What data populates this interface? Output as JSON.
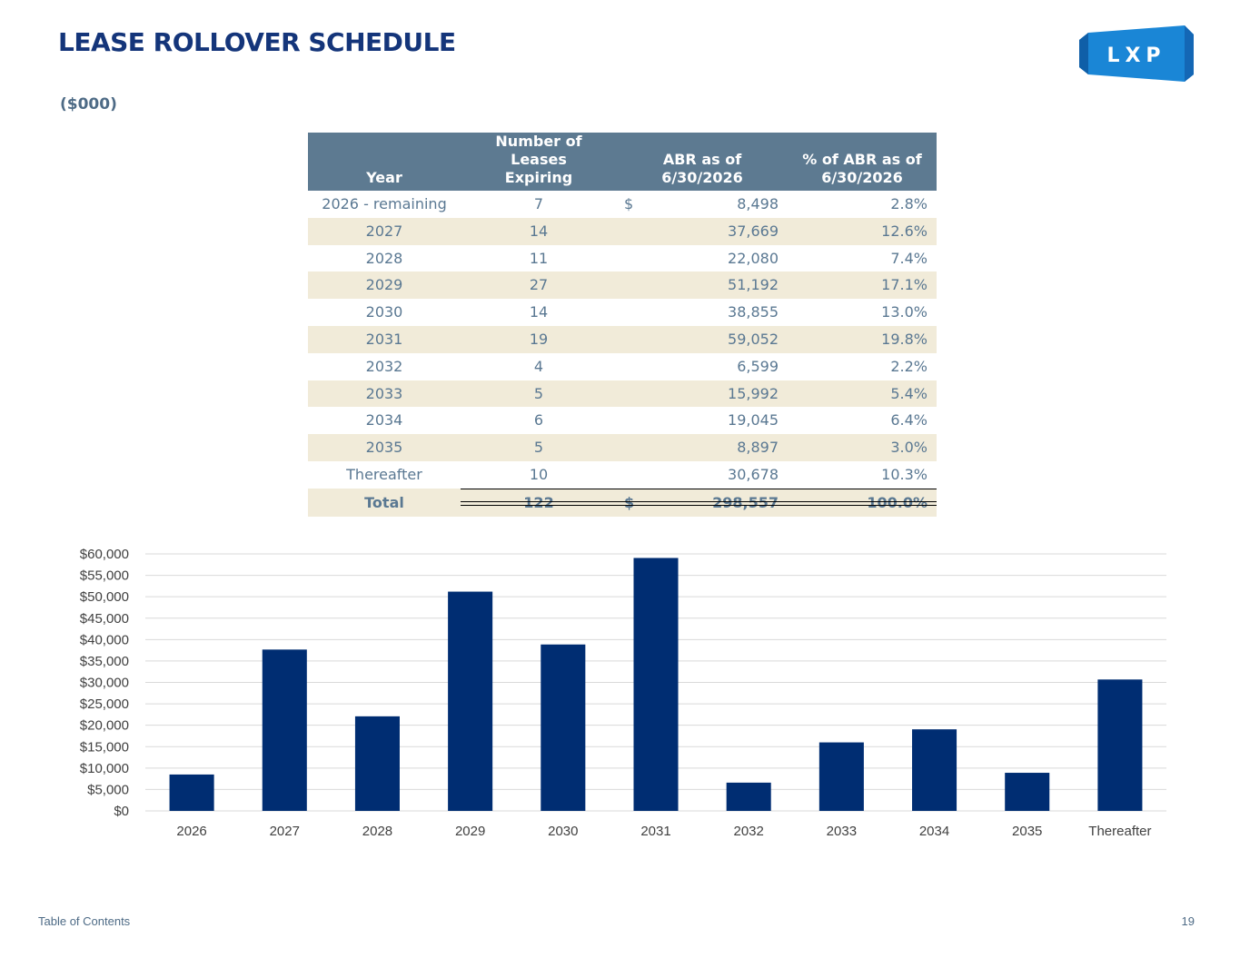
{
  "page": {
    "title": "LEASE ROLLOVER SCHEDULE",
    "subtitle": "($000)",
    "logo_text": "LXP",
    "footer_link": "Table of Contents",
    "page_number": "19"
  },
  "table": {
    "headers": {
      "year": "Year",
      "count_line1": "Number of Leases",
      "count_line2": "Expiring",
      "abr_line1": "ABR as of",
      "abr_line2": "6/30/2026",
      "pct_line1": "% of ABR as of",
      "pct_line2": "6/30/2026"
    },
    "rows": [
      {
        "year": "2026 - remaining",
        "count": "7",
        "currency": "$",
        "abr": "8,498",
        "pct": "2.8%"
      },
      {
        "year": "2027",
        "count": "14",
        "currency": "",
        "abr": "37,669",
        "pct": "12.6%"
      },
      {
        "year": "2028",
        "count": "11",
        "currency": "",
        "abr": "22,080",
        "pct": "7.4%"
      },
      {
        "year": "2029",
        "count": "27",
        "currency": "",
        "abr": "51,192",
        "pct": "17.1%"
      },
      {
        "year": "2030",
        "count": "14",
        "currency": "",
        "abr": "38,855",
        "pct": "13.0%"
      },
      {
        "year": "2031",
        "count": "19",
        "currency": "",
        "abr": "59,052",
        "pct": "19.8%"
      },
      {
        "year": "2032",
        "count": "4",
        "currency": "",
        "abr": "6,599",
        "pct": "2.2%"
      },
      {
        "year": "2033",
        "count": "5",
        "currency": "",
        "abr": "15,992",
        "pct": "5.4%"
      },
      {
        "year": "2034",
        "count": "6",
        "currency": "",
        "abr": "19,045",
        "pct": "6.4%"
      },
      {
        "year": "2035",
        "count": "5",
        "currency": "",
        "abr": "8,897",
        "pct": "3.0%"
      },
      {
        "year": "Thereafter",
        "count": "10",
        "currency": "",
        "abr": "30,678",
        "pct": "10.3%"
      }
    ],
    "total": {
      "year": "Total",
      "count": "122",
      "currency": "$",
      "abr": "298,557",
      "pct": "100.0%"
    }
  },
  "colors": {
    "title": "#14357a",
    "bar": "#002d72",
    "header_bg": "#5d7a91",
    "row_shade": "#f1ebd9",
    "logo_blue": "#1a86d6"
  },
  "chart_data": {
    "type": "bar",
    "categories": [
      "2026",
      "2027",
      "2028",
      "2029",
      "2030",
      "2031",
      "2032",
      "2033",
      "2034",
      "2035",
      "Thereafter"
    ],
    "values": [
      8498,
      37669,
      22080,
      51192,
      38855,
      59052,
      6599,
      15992,
      19045,
      8897,
      30678
    ],
    "ylim": [
      0,
      60000
    ],
    "yticks": [
      0,
      5000,
      10000,
      15000,
      20000,
      25000,
      30000,
      35000,
      40000,
      45000,
      50000,
      55000,
      60000
    ],
    "ytick_labels": [
      "$0",
      "$5,000",
      "$10,000",
      "$15,000",
      "$20,000",
      "$25,000",
      "$30,000",
      "$35,000",
      "$40,000",
      "$45,000",
      "$50,000",
      "$55,000",
      "$60,000"
    ],
    "grid": true,
    "legend": false,
    "title": "",
    "xlabel": "",
    "ylabel": ""
  }
}
